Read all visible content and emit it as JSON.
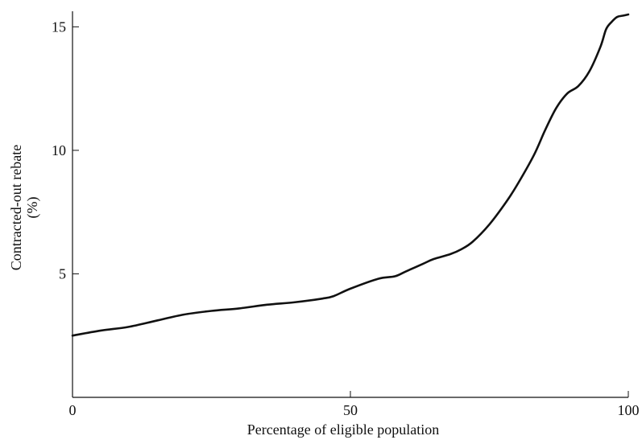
{
  "chart_data": {
    "type": "line",
    "title": "",
    "xlabel": "Percentage of eligible population",
    "ylabel": "Contracted-out rebate",
    "ylabel_unit": "(%)",
    "xlim": [
      0,
      100
    ],
    "ylim": [
      0,
      15.5
    ],
    "x_ticks": [
      0,
      50,
      100
    ],
    "x_tick_labels": [
      "0",
      "50",
      "100"
    ],
    "y_ticks": [
      5,
      10,
      15
    ],
    "y_tick_labels": [
      "5",
      "10",
      "15"
    ],
    "grid": false,
    "legend": "none",
    "series": [
      {
        "x": [
          0,
          5,
          10,
          15,
          20,
          25,
          30,
          35,
          40,
          45,
          47,
          50,
          55,
          58,
          60,
          63,
          65,
          68,
          70,
          72,
          75,
          78,
          80,
          83,
          85,
          87,
          89,
          91,
          93,
          95,
          96,
          97,
          98,
          99,
          100
        ],
        "values": [
          2.5,
          2.7,
          2.85,
          3.1,
          3.35,
          3.5,
          3.6,
          3.75,
          3.85,
          4.0,
          4.1,
          4.4,
          4.8,
          4.9,
          5.1,
          5.4,
          5.6,
          5.8,
          6.0,
          6.3,
          7.0,
          7.9,
          8.6,
          9.8,
          10.8,
          11.7,
          12.3,
          12.6,
          13.2,
          14.2,
          14.9,
          15.2,
          15.4,
          15.45,
          15.5
        ]
      }
    ]
  },
  "style": {
    "line_color": "#111111",
    "axis_color": "#111111",
    "background": "#ffffff"
  }
}
